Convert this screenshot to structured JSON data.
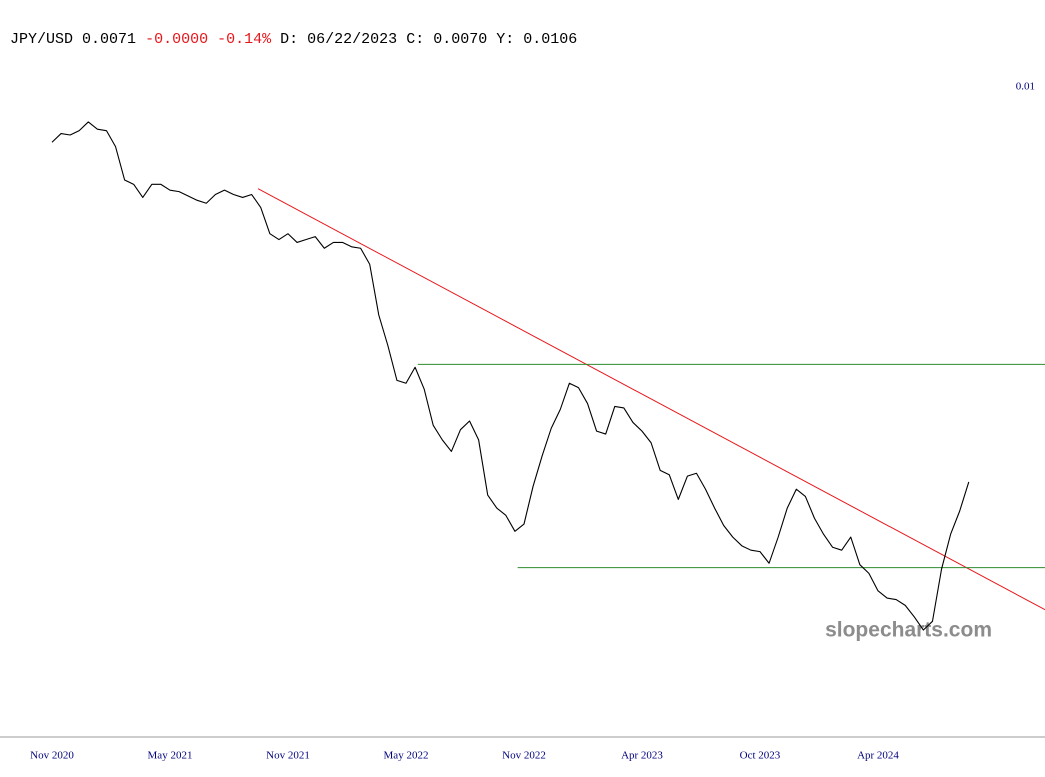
{
  "chart_data": {
    "type": "line",
    "header": {
      "symbol": "JPY/USD",
      "price": "0.0071",
      "change": "-0.0000",
      "change_pct": "-0.14%",
      "date_label": "D:",
      "date": "06/22/2023",
      "close_label": "C:",
      "close": "0.0070",
      "y_label": "Y:",
      "y": "0.0106"
    },
    "watermark": "slopecharts.com",
    "color": "#000000",
    "categories": [
      "Nov 2020",
      null,
      null,
      null,
      null,
      null,
      null,
      null,
      null,
      null,
      null,
      null,
      null,
      "May 2021",
      null,
      null,
      null,
      null,
      null,
      null,
      null,
      null,
      null,
      null,
      null,
      null,
      "Nov 2021",
      null,
      null,
      null,
      null,
      null,
      null,
      null,
      null,
      null,
      null,
      null,
      null,
      "May 2022",
      null,
      null,
      null,
      null,
      null,
      null,
      null,
      null,
      null,
      null,
      null,
      null,
      "Nov 2022",
      null,
      null,
      null,
      null,
      null,
      null,
      null,
      null,
      null,
      null,
      null,
      null,
      "Apr 2023",
      null,
      null,
      null,
      null,
      null,
      null,
      null,
      null,
      null,
      null,
      null,
      null,
      "Oct 2023",
      null,
      null,
      null,
      null,
      null,
      null,
      null,
      null,
      null,
      null,
      null,
      null,
      "Apr 2024",
      null,
      null,
      null,
      null,
      null,
      null,
      null,
      null,
      null,
      null
    ],
    "values": [
      0.00962,
      0.00968,
      0.00967,
      0.0097,
      0.00976,
      0.00971,
      0.0097,
      0.00959,
      0.00936,
      0.00933,
      0.00924,
      0.00933,
      0.00933,
      0.00929,
      0.00928,
      0.00925,
      0.00922,
      0.0092,
      0.00926,
      0.00929,
      0.00926,
      0.00924,
      0.00926,
      0.00917,
      0.00899,
      0.00895,
      0.00899,
      0.00893,
      0.00895,
      0.00897,
      0.00889,
      0.00893,
      0.00893,
      0.0089,
      0.00889,
      0.00878,
      0.00843,
      0.00822,
      0.00798,
      0.00796,
      0.00807,
      0.00792,
      0.00767,
      0.00757,
      0.00749,
      0.00764,
      0.0077,
      0.00757,
      0.00719,
      0.0071,
      0.00705,
      0.00694,
      0.00699,
      0.00725,
      0.00746,
      0.00765,
      0.00778,
      0.00796,
      0.00793,
      0.00782,
      0.00763,
      0.00761,
      0.0078,
      0.00779,
      0.00769,
      0.00763,
      0.00755,
      0.00736,
      0.00733,
      0.00716,
      0.00732,
      0.00734,
      0.00723,
      0.0071,
      0.00698,
      0.0069,
      0.00684,
      0.00681,
      0.0068,
      0.00672,
      0.0069,
      0.0071,
      0.00723,
      0.00718,
      0.00703,
      0.00692,
      0.00683,
      0.00681,
      0.0069,
      0.00671,
      0.00665,
      0.00653,
      0.00648,
      0.00647,
      0.00643,
      0.00635,
      0.00626,
      0.00632,
      0.00668,
      0.00692,
      0.00708,
      0.00728
    ],
    "ylim": [
      0.00553,
      0.0106
    ],
    "yticks": [
      0.01
    ],
    "trendlines": [
      {
        "color": "#e8161b",
        "x": [
          22.7,
          109.4
        ],
        "y": [
          0.0093,
          0.0064
        ]
      },
      {
        "color": "#2e8b2e",
        "x": [
          40.3,
          109.4
        ],
        "y": [
          0.00809,
          0.00809
        ]
      },
      {
        "color": "#2e8b2e",
        "x": [
          51.3,
          109.4
        ],
        "y": [
          0.00669,
          0.00669
        ]
      }
    ]
  }
}
